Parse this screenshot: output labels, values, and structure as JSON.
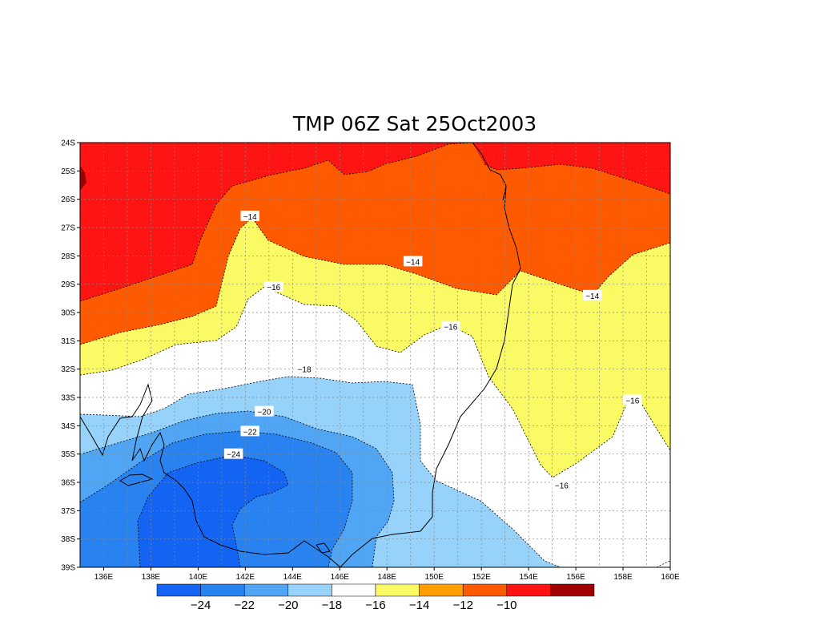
{
  "map": {
    "title": "TMP 06Z Sat 25Oct2003",
    "lat_labels": [
      "24S",
      "25S",
      "26S",
      "27S",
      "28S",
      "29S",
      "30S",
      "31S",
      "32S",
      "33S",
      "34S",
      "35S",
      "36S",
      "37S",
      "38S",
      "39S"
    ],
    "lon_labels": [
      "136E",
      "138E",
      "140E",
      "142E",
      "144E",
      "146E",
      "148E",
      "150E",
      "152E",
      "154E",
      "156E",
      "158E",
      "160E"
    ],
    "lon_range": [
      135,
      160
    ],
    "lat_range": [
      -39,
      -24
    ],
    "grid": true,
    "contour_labels": [
      {
        "value": "-14",
        "lon": 142.2,
        "lat": -26.6
      },
      {
        "value": "-14",
        "lon": 149.1,
        "lat": -28.2
      },
      {
        "value": "-14",
        "lon": 156.7,
        "lat": -29.4
      },
      {
        "value": "-16",
        "lon": 143.2,
        "lat": -29.1
      },
      {
        "value": "-16",
        "lon": 150.7,
        "lat": -30.5
      },
      {
        "value": "-16",
        "lon": 158.4,
        "lat": -33.1
      },
      {
        "value": "-16",
        "lon": 155.4,
        "lat": -36.1
      },
      {
        "value": "-18",
        "lon": 144.5,
        "lat": -32.0
      },
      {
        "value": "-20",
        "lon": 142.8,
        "lat": -33.5
      },
      {
        "value": "-22",
        "lon": 142.2,
        "lat": -34.2
      },
      {
        "value": "-24",
        "lon": 141.5,
        "lat": -35.0
      }
    ]
  },
  "colorbar": {
    "colors": [
      "#1464f4",
      "#2882f0",
      "#50a5f5",
      "#96d2fa",
      "#ffffff",
      "#fafa64",
      "#ffa000",
      "#ff5a00",
      "#ff1414",
      "#a00000"
    ],
    "labels": [
      "-24",
      "-22",
      "-20",
      "-18",
      "-16",
      "-14",
      "-12",
      "-10"
    ]
  }
}
